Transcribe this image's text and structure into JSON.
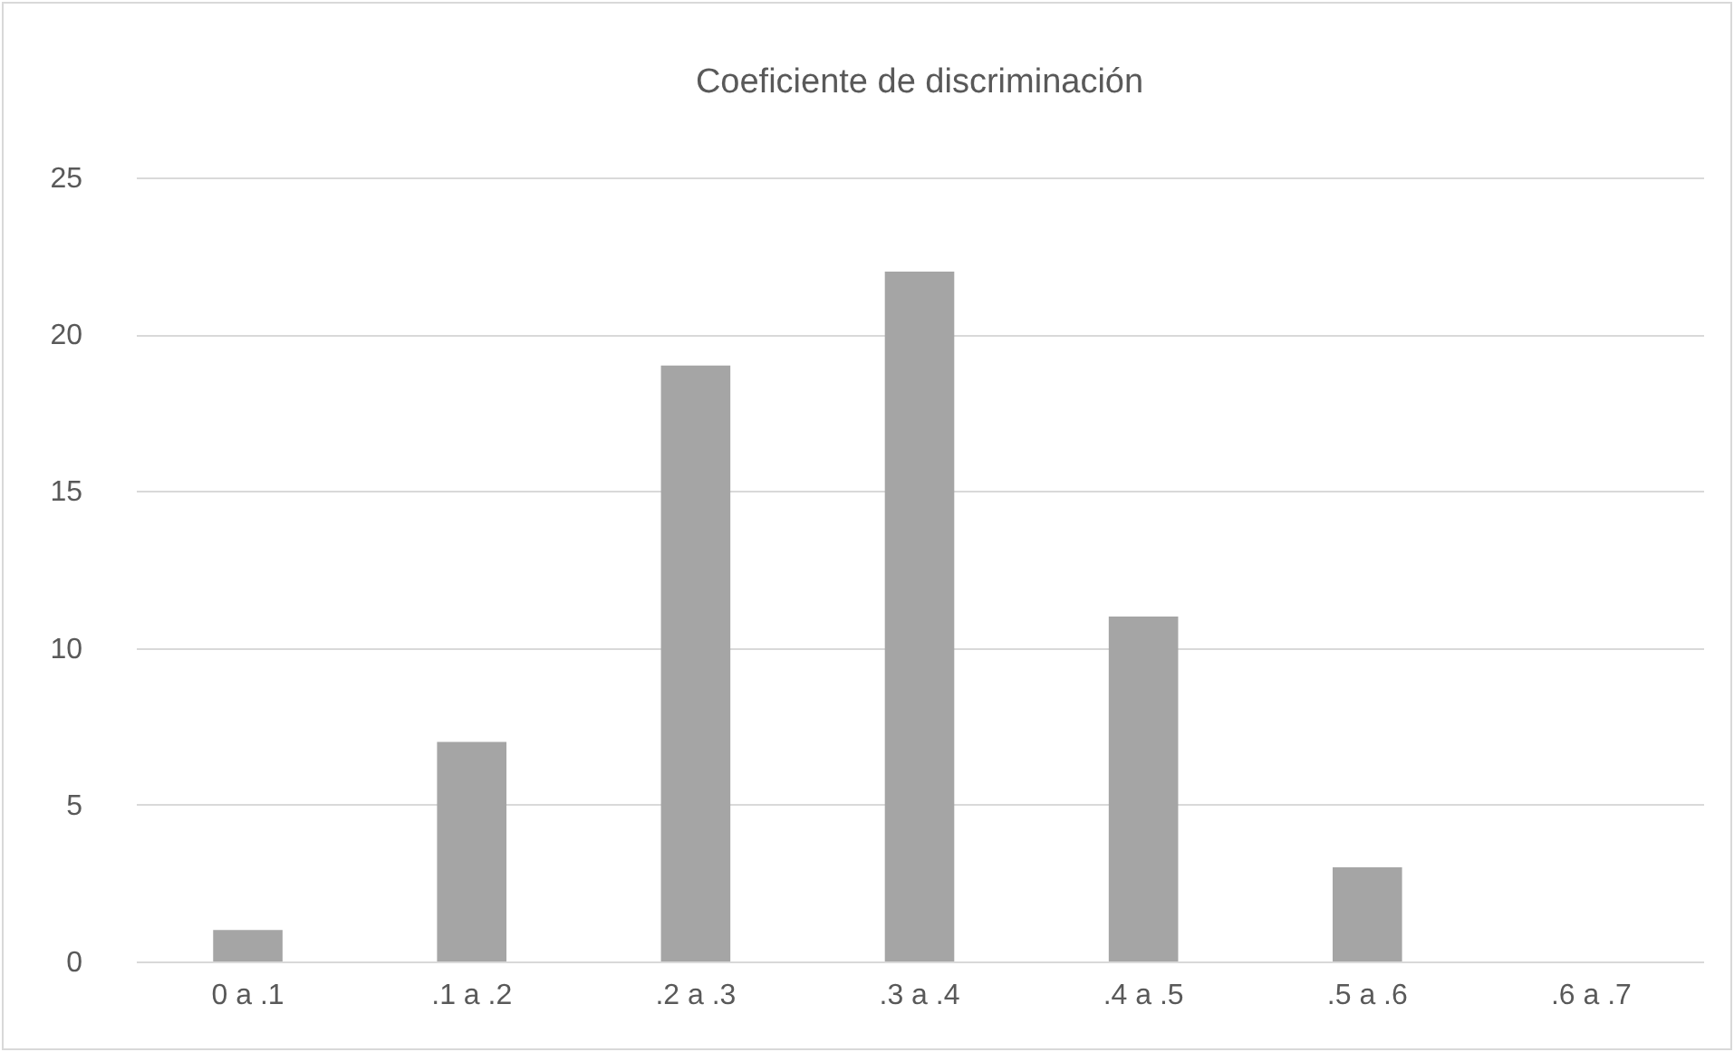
{
  "chart_data": {
    "type": "bar",
    "title": "Coeficiente de discriminación",
    "categories": [
      "0 a .1",
      ".1 a .2",
      ".2 a .3",
      ".3 a .4",
      ".4 a .5",
      ".5 a .6",
      ".6 a .7"
    ],
    "values": [
      1,
      7,
      19,
      22,
      11,
      3,
      0
    ],
    "color": "#a5a5a5",
    "ylim": [
      0,
      25
    ],
    "yticks": [
      0,
      5,
      10,
      15,
      20,
      25
    ],
    "grid": "y"
  }
}
